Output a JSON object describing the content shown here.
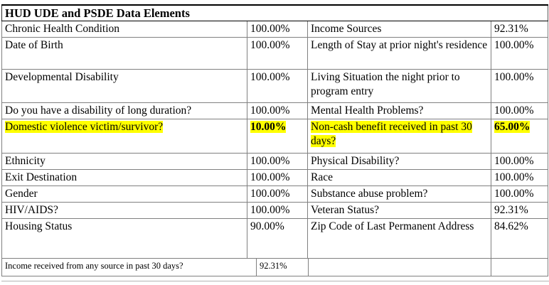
{
  "title": "HUD UDE and PSDE Data Elements",
  "colors": {
    "highlight": "#ffff00"
  },
  "table": {
    "rows": [
      {
        "left_label": "Chronic Health Condition",
        "left_value": "100.00%",
        "right_label": "Income Sources",
        "right_value": "92.31%",
        "highlighted": false
      },
      {
        "left_label": "Date of Birth",
        "left_value": "100.00%",
        "right_label": "Length of Stay at prior night's residence",
        "right_value": "100.00%",
        "highlighted": false
      },
      {
        "left_label": "Developmental Disability",
        "left_value": "100.00%",
        "right_label": "Living Situation the night prior to program entry",
        "right_value": "100.00%",
        "highlighted": false
      },
      {
        "left_label": "Do you have a disability of long duration?",
        "left_value": "100.00%",
        "right_label": "Mental Health Problems?",
        "right_value": "100.00%",
        "highlighted": false
      },
      {
        "left_label": "Domestic violence victim/survivor?",
        "left_value": "10.00%",
        "right_label": "Non-cash benefit received in past 30 days?",
        "right_value": "65.00%",
        "highlighted": true
      },
      {
        "left_label": "Ethnicity",
        "left_value": "100.00%",
        "right_label": "Physical Disability?",
        "right_value": "100.00%",
        "highlighted": false
      },
      {
        "left_label": "Exit Destination",
        "left_value": "100.00%",
        "right_label": "Race",
        "right_value": "100.00%",
        "highlighted": false
      },
      {
        "left_label": "Gender",
        "left_value": "100.00%",
        "right_label": "Substance abuse problem?",
        "right_value": "100.00%",
        "highlighted": false
      },
      {
        "left_label": "HIV/AIDS?",
        "left_value": "100.00%",
        "right_label": "Veteran Status?",
        "right_value": "92.31%",
        "highlighted": false
      },
      {
        "left_label": "Housing Status",
        "left_value": "90.00%",
        "right_label": "Zip Code of Last Permanent Address",
        "right_value": "84.62%",
        "highlighted": false
      }
    ],
    "footer_row": {
      "left_label": "Income received from any source in past 30 days?",
      "left_value": "92.31%",
      "right_label": "",
      "right_value": ""
    }
  }
}
